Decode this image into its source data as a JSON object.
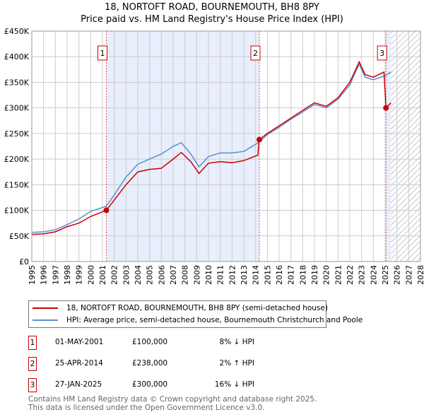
{
  "chart_data": {
    "type": "line",
    "title": "18, NORTOFT ROAD, BOURNEMOUTH, BH8 8PY",
    "subtitle": "Price paid vs. HM Land Registry's House Price Index (HPI)",
    "xlim": [
      1995,
      2028
    ],
    "ylim": [
      0,
      450000
    ],
    "y_ticks": [
      0,
      50000,
      100000,
      150000,
      200000,
      250000,
      300000,
      350000,
      400000,
      450000
    ],
    "y_tick_labels": [
      "£0",
      "£50K",
      "£100K",
      "£150K",
      "£200K",
      "£250K",
      "£300K",
      "£350K",
      "£400K",
      "£450K"
    ],
    "x_ticks": [
      "1995",
      "1996",
      "1997",
      "1998",
      "1999",
      "2000",
      "2001",
      "2002",
      "2003",
      "2004",
      "2005",
      "2006",
      "2007",
      "2008",
      "2009",
      "2010",
      "2011",
      "2012",
      "2013",
      "2014",
      "2015",
      "2016",
      "2017",
      "2018",
      "2019",
      "2020",
      "2021",
      "2022",
      "2023",
      "2024",
      "2025",
      "2026",
      "2027",
      "2028"
    ],
    "grid": true,
    "series": [
      {
        "name": "18, NORTOFT ROAD, BOURNEMOUTH, BH8 8PY (semi-detached house)",
        "color": "#cc0000",
        "x": [
          1995,
          1996,
          1997,
          1998,
          1999,
          2000,
          2001.33,
          2002,
          2003,
          2004,
          2005,
          2006,
          2007,
          2007.7,
          2008.5,
          2009.2,
          2010,
          2011,
          2012,
          2013,
          2014.2,
          2014.3,
          2015,
          2016,
          2017,
          2018,
          2019,
          2020,
          2021,
          2022,
          2022.8,
          2023.3,
          2024,
          2024.9,
          2025.07,
          2025.5
        ],
        "y": [
          53000,
          54000,
          58000,
          68000,
          75000,
          88000,
          100000,
          120000,
          150000,
          175000,
          180000,
          182000,
          200000,
          213000,
          195000,
          172000,
          192000,
          195000,
          193000,
          197000,
          208000,
          238000,
          250000,
          265000,
          280000,
          295000,
          310000,
          303000,
          320000,
          350000,
          390000,
          365000,
          360000,
          370000,
          300000,
          310000
        ]
      },
      {
        "name": "HPI: Average price, semi-detached house, Bournemouth Christchurch and Poole",
        "color": "#5b8fd4",
        "x": [
          1995,
          1996,
          1997,
          1998,
          1999,
          2000,
          2001.33,
          2002,
          2003,
          2004,
          2005,
          2006,
          2007,
          2007.7,
          2008.5,
          2009.2,
          2010,
          2011,
          2012,
          2013,
          2014.3,
          2015,
          2016,
          2017,
          2018,
          2019,
          2020,
          2021,
          2022,
          2022.8,
          2023.3,
          2024,
          2024.9,
          2025.5
        ],
        "y": [
          57000,
          58000,
          62000,
          72000,
          83000,
          98000,
          108000,
          130000,
          165000,
          190000,
          200000,
          210000,
          225000,
          232000,
          210000,
          185000,
          205000,
          212000,
          212000,
          215000,
          233000,
          248000,
          262000,
          278000,
          292000,
          307000,
          300000,
          317000,
          345000,
          385000,
          360000,
          355000,
          362000,
          370000
        ]
      }
    ],
    "sales": [
      {
        "label": "1",
        "date": "01-MAY-2001",
        "x": 2001.33,
        "price": "£100,000",
        "value": 100000,
        "hpi": "8% ↓ HPI"
      },
      {
        "label": "2",
        "date": "25-APR-2014",
        "x": 2014.32,
        "price": "£238,000",
        "value": 238000,
        "hpi": "2% ↑ HPI"
      },
      {
        "label": "3",
        "date": "27-JAN-2025",
        "x": 2025.07,
        "price": "£300,000",
        "value": 300000,
        "hpi": "16% ↓ HPI"
      }
    ],
    "forecast_start": 2025.5
  },
  "footer": [
    "Contains HM Land Registry data © Crown copyright and database right 2025.",
    "This data is licensed under the Open Government Licence v3.0."
  ]
}
